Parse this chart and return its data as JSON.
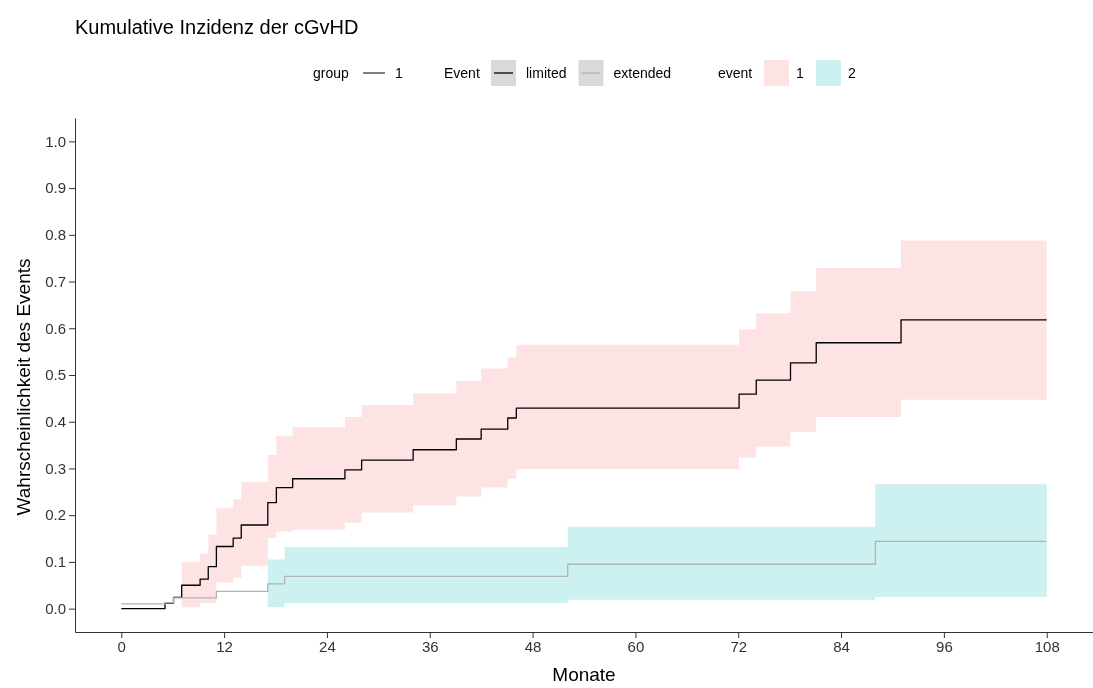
{
  "chart_data": {
    "type": "step",
    "title": "Kumulative Inzidenz der cGvHD",
    "xlabel": "Monate",
    "ylabel": "Wahrscheinlichkeit des Events",
    "legend_title": "Event",
    "legend": "top",
    "annotations": [
      "group",
      "1",
      "event",
      "1",
      "2"
    ],
    "xlim": [
      -5.4,
      113.4
    ],
    "xticks": [
      0,
      12,
      24,
      36,
      48,
      60,
      72,
      84,
      96,
      108
    ],
    "ylim": [
      -0.05,
      1.05
    ],
    "yticks": [
      {
        "value": 0,
        "label": "0.0"
      },
      0.1,
      0.2,
      0.3,
      0.4,
      0.5,
      0.6,
      0.7,
      0.8,
      0.9,
      {
        "value": 1,
        "label": "1.0"
      }
    ],
    "grid": false,
    "series": [
      {
        "name": "limited",
        "color": "#000000",
        "x": [
          0,
          5.1,
          6.1,
          7.05,
          9.2,
          10.15,
          11.1,
          13.06,
          14.0,
          17.1,
          18.1,
          20.0,
          26.1,
          28.05,
          34.06,
          39.1,
          42.0,
          45.1,
          46.1,
          72.1,
          74.1,
          78.1,
          81.1,
          91.0,
          108
        ],
        "values": [
          0,
          0.012,
          0.024,
          0.05,
          0.063,
          0.09,
          0.133,
          0.151,
          0.179,
          0.227,
          0.259,
          0.278,
          0.297,
          0.318,
          0.34,
          0.363,
          0.384,
          0.408,
          0.429,
          0.459,
          0.489,
          0.526,
          0.569,
          0.618,
          0.618
        ],
        "upper": [
          null,
          null,
          null,
          0.1,
          0.118,
          0.158,
          0.215,
          0.234,
          0.271,
          0.329,
          0.37,
          0.388,
          0.41,
          0.436,
          0.461,
          0.487,
          0.514,
          0.538,
          0.565,
          0.598,
          0.632,
          0.679,
          0.729,
          0.788,
          0.788
        ],
        "lower": [
          null,
          null,
          null,
          0.003,
          0.012,
          0.012,
          0.056,
          0.066,
          0.092,
          0.151,
          0.165,
          0.169,
          0.184,
          0.206,
          0.221,
          0.24,
          0.259,
          0.278,
          0.299,
          0.323,
          0.347,
          0.378,
          0.41,
          0.447,
          0.447
        ]
      },
      {
        "name": "extended",
        "color": "#b3b3b3",
        "x": [
          0,
          5.1,
          6.1,
          11.1,
          17.1,
          19.06,
          52.1,
          88.0,
          108
        ],
        "values": [
          0.01,
          0.013,
          0.023,
          0.037,
          0.053,
          0.069,
          0.095,
          0.144,
          0.144
        ],
        "upper": [
          null,
          null,
          null,
          null,
          0.105,
          0.132,
          0.175,
          0.266,
          0.266
        ],
        "lower": [
          null,
          null,
          null,
          null,
          0.003,
          0.012,
          0.019,
          0.025,
          0.025
        ]
      }
    ]
  }
}
